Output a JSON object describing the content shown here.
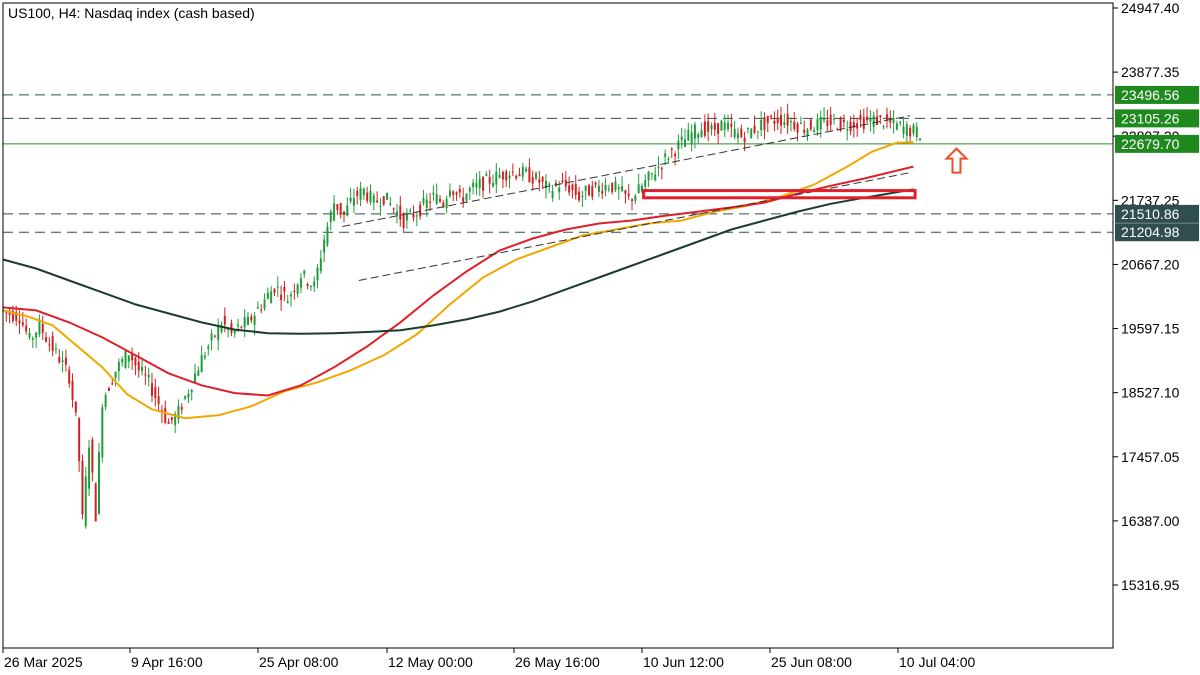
{
  "chart_data": {
    "type": "candlestick",
    "title": "US100, H4:  Nasdaq index (cash based)",
    "symbol": "US100",
    "timeframe": "H4",
    "instrument": "Nasdaq index (cash based)",
    "ylim": [
      14400,
      24947.4
    ],
    "y_ticks": [
      "24947.40",
      "23877.35",
      "22807.20",
      "21737.25",
      "20667.20",
      "19597.15",
      "18527.10",
      "17457.05",
      "16387.00",
      "15316.95"
    ],
    "x_ticks": [
      "26 Mar 2025",
      "9 Apr 16:00",
      "25 Apr 08:00",
      "12 May 00:00",
      "26 May 16:00",
      "10 Jun 12:00",
      "25 Jun 08:00",
      "10 Jul 04:00"
    ],
    "price_levels": [
      {
        "label": "23496.56",
        "value": 23496.56,
        "style": "dashed",
        "color": "#1e8a1e"
      },
      {
        "label": "23105.26",
        "value": 23105.26,
        "style": "dashed",
        "color": "#1e8a1e"
      },
      {
        "label": "22679.70",
        "value": 22679.7,
        "style": "solid",
        "color": "#1e8a1e"
      },
      {
        "label": "21510.86",
        "value": 21510.86,
        "style": "dashed",
        "color": "#2f4f4f"
      },
      {
        "label": "21204.98",
        "value": 21204.98,
        "style": "dashed",
        "color": "#2f4f4f"
      }
    ],
    "moving_averages": [
      {
        "color": "#f0a800",
        "points": [
          [
            0,
            19900
          ],
          [
            15,
            19800
          ],
          [
            30,
            19650
          ],
          [
            45,
            19300
          ],
          [
            60,
            18950
          ],
          [
            75,
            18500
          ],
          [
            90,
            18250
          ],
          [
            110,
            18100
          ],
          [
            130,
            18150
          ],
          [
            150,
            18300
          ],
          [
            170,
            18550
          ],
          [
            190,
            18700
          ],
          [
            210,
            18900
          ],
          [
            230,
            19150
          ],
          [
            250,
            19500
          ],
          [
            270,
            20000
          ],
          [
            290,
            20450
          ],
          [
            310,
            20750
          ],
          [
            330,
            20950
          ],
          [
            350,
            21150
          ],
          [
            370,
            21250
          ],
          [
            390,
            21350
          ],
          [
            410,
            21400
          ],
          [
            430,
            21550
          ],
          [
            450,
            21650
          ],
          [
            470,
            21800
          ],
          [
            490,
            22000
          ],
          [
            510,
            22300
          ],
          [
            525,
            22550
          ],
          [
            540,
            22700
          ],
          [
            550,
            22710
          ]
        ]
      },
      {
        "color": "#e0202a",
        "points": [
          [
            0,
            19950
          ],
          [
            20,
            19900
          ],
          [
            40,
            19700
          ],
          [
            60,
            19450
          ],
          [
            80,
            19150
          ],
          [
            100,
            18850
          ],
          [
            120,
            18650
          ],
          [
            140,
            18520
          ],
          [
            160,
            18480
          ],
          [
            180,
            18650
          ],
          [
            200,
            18950
          ],
          [
            220,
            19300
          ],
          [
            240,
            19700
          ],
          [
            260,
            20150
          ],
          [
            280,
            20550
          ],
          [
            300,
            20900
          ],
          [
            320,
            21100
          ],
          [
            340,
            21250
          ],
          [
            360,
            21350
          ],
          [
            380,
            21400
          ],
          [
            400,
            21480
          ],
          [
            420,
            21550
          ],
          [
            440,
            21620
          ],
          [
            460,
            21700
          ],
          [
            480,
            21850
          ],
          [
            500,
            21980
          ],
          [
            520,
            22100
          ],
          [
            535,
            22200
          ],
          [
            550,
            22300
          ]
        ]
      },
      {
        "color": "#1c3d2c",
        "points": [
          [
            0,
            20750
          ],
          [
            20,
            20600
          ],
          [
            40,
            20400
          ],
          [
            60,
            20200
          ],
          [
            80,
            20000
          ],
          [
            100,
            19850
          ],
          [
            120,
            19700
          ],
          [
            140,
            19580
          ],
          [
            160,
            19520
          ],
          [
            180,
            19510
          ],
          [
            200,
            19520
          ],
          [
            220,
            19540
          ],
          [
            240,
            19570
          ],
          [
            260,
            19650
          ],
          [
            280,
            19750
          ],
          [
            300,
            19880
          ],
          [
            320,
            20050
          ],
          [
            340,
            20250
          ],
          [
            360,
            20450
          ],
          [
            380,
            20650
          ],
          [
            400,
            20850
          ],
          [
            420,
            21050
          ],
          [
            440,
            21250
          ],
          [
            460,
            21400
          ],
          [
            480,
            21550
          ],
          [
            500,
            21680
          ],
          [
            520,
            21780
          ],
          [
            535,
            21850
          ],
          [
            550,
            21920
          ]
        ]
      }
    ],
    "channel_lines": [
      {
        "from": [
          205,
          21300
        ],
        "to": [
          548,
          23150
        ]
      },
      {
        "from": [
          215,
          20400
        ],
        "to": [
          548,
          22200
        ]
      }
    ],
    "annotations": [
      {
        "type": "rectangle",
        "color": "#e0202a",
        "x_range": [
          387,
          551
        ],
        "y_range": [
          21780,
          21900
        ]
      },
      {
        "type": "up-arrow",
        "color": "#e8502a",
        "at": [
          576,
          22400
        ]
      }
    ]
  },
  "ui": {
    "bg": "#ffffff",
    "axis_color": "#000000",
    "bull_color": "#1e9e3a",
    "bear_color": "#d02020"
  }
}
